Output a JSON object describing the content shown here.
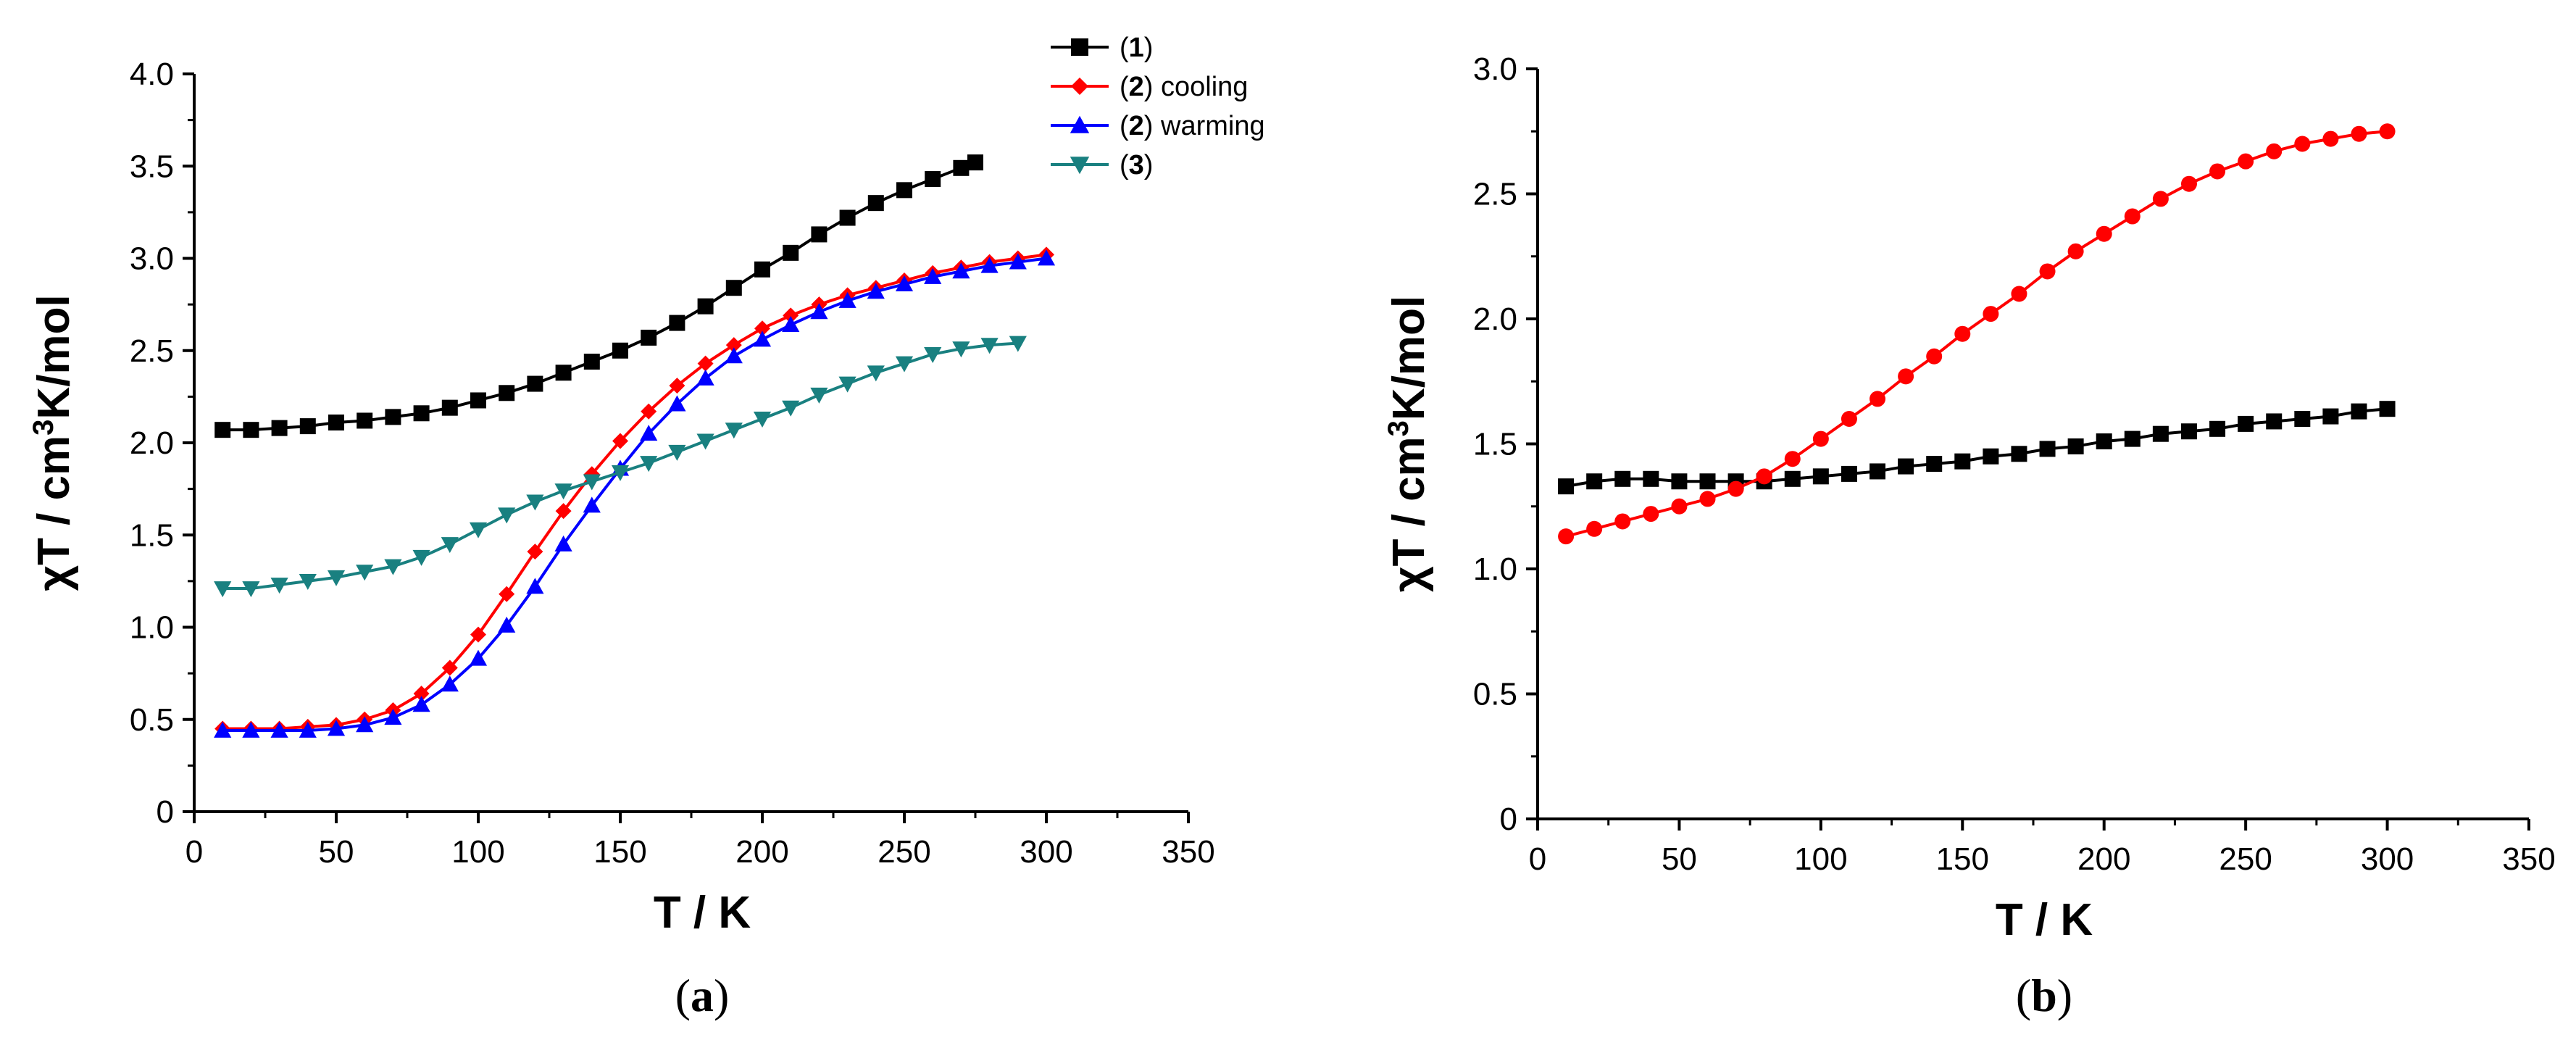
{
  "chart_data": [
    {
      "type": "scatter",
      "panel_label": "a",
      "xlabel": "T / K",
      "ylabel_parts": [
        "χT / cm",
        "3",
        "K/mol"
      ],
      "xlim": [
        0,
        350
      ],
      "ylim": [
        0,
        4.0
      ],
      "xticks": [
        0,
        50,
        100,
        150,
        200,
        250,
        300,
        350
      ],
      "yticks": [
        0,
        0.5,
        1.0,
        1.5,
        2.0,
        2.5,
        3.0,
        3.5,
        4.0
      ],
      "xtick_labels": [
        "0",
        "50",
        "100",
        "150",
        "200",
        "250",
        "300",
        "350"
      ],
      "ytick_labels": [
        "0",
        "0.5",
        "1.0",
        "1.5",
        "2.0",
        "2.5",
        "3.0",
        "3.5",
        "4.0"
      ],
      "legend_position": "top-right",
      "series": [
        {
          "name": "(1)",
          "legend_num": "1",
          "legend_suffix": "",
          "color": "#000000",
          "marker": "square",
          "x": [
            10,
            20,
            30,
            40,
            50,
            60,
            70,
            80,
            90,
            100,
            110,
            120,
            130,
            140,
            150,
            160,
            170,
            180,
            190,
            200,
            210,
            220,
            230,
            240,
            250,
            260,
            270,
            275
          ],
          "y": [
            2.07,
            2.07,
            2.08,
            2.09,
            2.11,
            2.12,
            2.14,
            2.16,
            2.19,
            2.23,
            2.27,
            2.32,
            2.38,
            2.44,
            2.5,
            2.57,
            2.65,
            2.74,
            2.84,
            2.94,
            3.03,
            3.13,
            3.22,
            3.3,
            3.37,
            3.43,
            3.49,
            3.52
          ]
        },
        {
          "name": "(2) cooling",
          "legend_num": "2",
          "legend_suffix": " cooling",
          "color": "#ff0000",
          "marker": "diamond",
          "x": [
            10,
            20,
            30,
            40,
            50,
            60,
            70,
            80,
            90,
            100,
            110,
            120,
            130,
            140,
            150,
            160,
            170,
            180,
            190,
            200,
            210,
            220,
            230,
            240,
            250,
            260,
            270,
            280,
            290,
            300
          ],
          "y": [
            0.45,
            0.45,
            0.45,
            0.46,
            0.47,
            0.5,
            0.55,
            0.64,
            0.78,
            0.96,
            1.18,
            1.41,
            1.63,
            1.83,
            2.01,
            2.17,
            2.31,
            2.43,
            2.53,
            2.62,
            2.69,
            2.75,
            2.8,
            2.84,
            2.88,
            2.92,
            2.95,
            2.98,
            3.0,
            3.02
          ]
        },
        {
          "name": "(2) warming",
          "legend_num": "2",
          "legend_suffix": " warming",
          "color": "#0000ff",
          "marker": "triangle-up",
          "x": [
            10,
            20,
            30,
            40,
            50,
            60,
            70,
            80,
            90,
            100,
            110,
            120,
            130,
            140,
            150,
            160,
            170,
            180,
            190,
            200,
            210,
            220,
            230,
            240,
            250,
            260,
            270,
            280,
            290,
            300
          ],
          "y": [
            0.44,
            0.44,
            0.44,
            0.44,
            0.45,
            0.47,
            0.51,
            0.58,
            0.69,
            0.83,
            1.01,
            1.22,
            1.45,
            1.66,
            1.86,
            2.05,
            2.21,
            2.35,
            2.47,
            2.56,
            2.64,
            2.71,
            2.77,
            2.82,
            2.86,
            2.9,
            2.93,
            2.96,
            2.98,
            3.0
          ]
        },
        {
          "name": "(3)",
          "legend_num": "3",
          "legend_suffix": "",
          "color": "#198080",
          "marker": "triangle-down",
          "x": [
            10,
            20,
            30,
            40,
            50,
            60,
            70,
            80,
            90,
            100,
            110,
            120,
            130,
            140,
            150,
            160,
            170,
            180,
            190,
            200,
            210,
            220,
            230,
            240,
            250,
            260,
            270,
            280,
            290
          ],
          "y": [
            1.21,
            1.21,
            1.23,
            1.25,
            1.27,
            1.3,
            1.33,
            1.38,
            1.45,
            1.53,
            1.61,
            1.68,
            1.74,
            1.79,
            1.84,
            1.89,
            1.95,
            2.01,
            2.07,
            2.13,
            2.19,
            2.26,
            2.32,
            2.38,
            2.43,
            2.48,
            2.51,
            2.53,
            2.54
          ]
        }
      ]
    },
    {
      "type": "scatter",
      "panel_label": "b",
      "xlabel": "T / K",
      "ylabel_parts": [
        "χT / cm",
        "3",
        "K/mol"
      ],
      "xlim": [
        0,
        350
      ],
      "ylim": [
        0,
        3.0
      ],
      "xticks": [
        0,
        50,
        100,
        150,
        200,
        250,
        300,
        350
      ],
      "yticks": [
        0,
        0.5,
        1.0,
        1.5,
        2.0,
        2.5,
        3.0
      ],
      "xtick_labels": [
        "0",
        "50",
        "100",
        "150",
        "200",
        "250",
        "300",
        "350"
      ],
      "ytick_labels": [
        "0",
        "0.5",
        "1.0",
        "1.5",
        "2.0",
        "2.5",
        "3.0"
      ],
      "series": [
        {
          "name": "black",
          "color": "#000000",
          "marker": "square",
          "x": [
            10,
            20,
            30,
            40,
            50,
            60,
            70,
            80,
            90,
            100,
            110,
            120,
            130,
            140,
            150,
            160,
            170,
            180,
            190,
            200,
            210,
            220,
            230,
            240,
            250,
            260,
            270,
            280,
            290,
            300
          ],
          "y": [
            1.33,
            1.35,
            1.36,
            1.36,
            1.35,
            1.35,
            1.35,
            1.35,
            1.36,
            1.37,
            1.38,
            1.39,
            1.41,
            1.42,
            1.43,
            1.45,
            1.46,
            1.48,
            1.49,
            1.51,
            1.52,
            1.54,
            1.55,
            1.56,
            1.58,
            1.59,
            1.6,
            1.61,
            1.63,
            1.64
          ]
        },
        {
          "name": "red",
          "color": "#ff0000",
          "marker": "circle",
          "x": [
            10,
            20,
            30,
            40,
            50,
            60,
            70,
            80,
            90,
            100,
            110,
            120,
            130,
            140,
            150,
            160,
            170,
            180,
            190,
            200,
            210,
            220,
            230,
            240,
            250,
            260,
            270,
            280,
            290,
            300
          ],
          "y": [
            1.13,
            1.16,
            1.19,
            1.22,
            1.25,
            1.28,
            1.32,
            1.37,
            1.44,
            1.52,
            1.6,
            1.68,
            1.77,
            1.85,
            1.94,
            2.02,
            2.1,
            2.19,
            2.27,
            2.34,
            2.41,
            2.48,
            2.54,
            2.59,
            2.63,
            2.67,
            2.7,
            2.72,
            2.74,
            2.75
          ]
        }
      ]
    }
  ]
}
